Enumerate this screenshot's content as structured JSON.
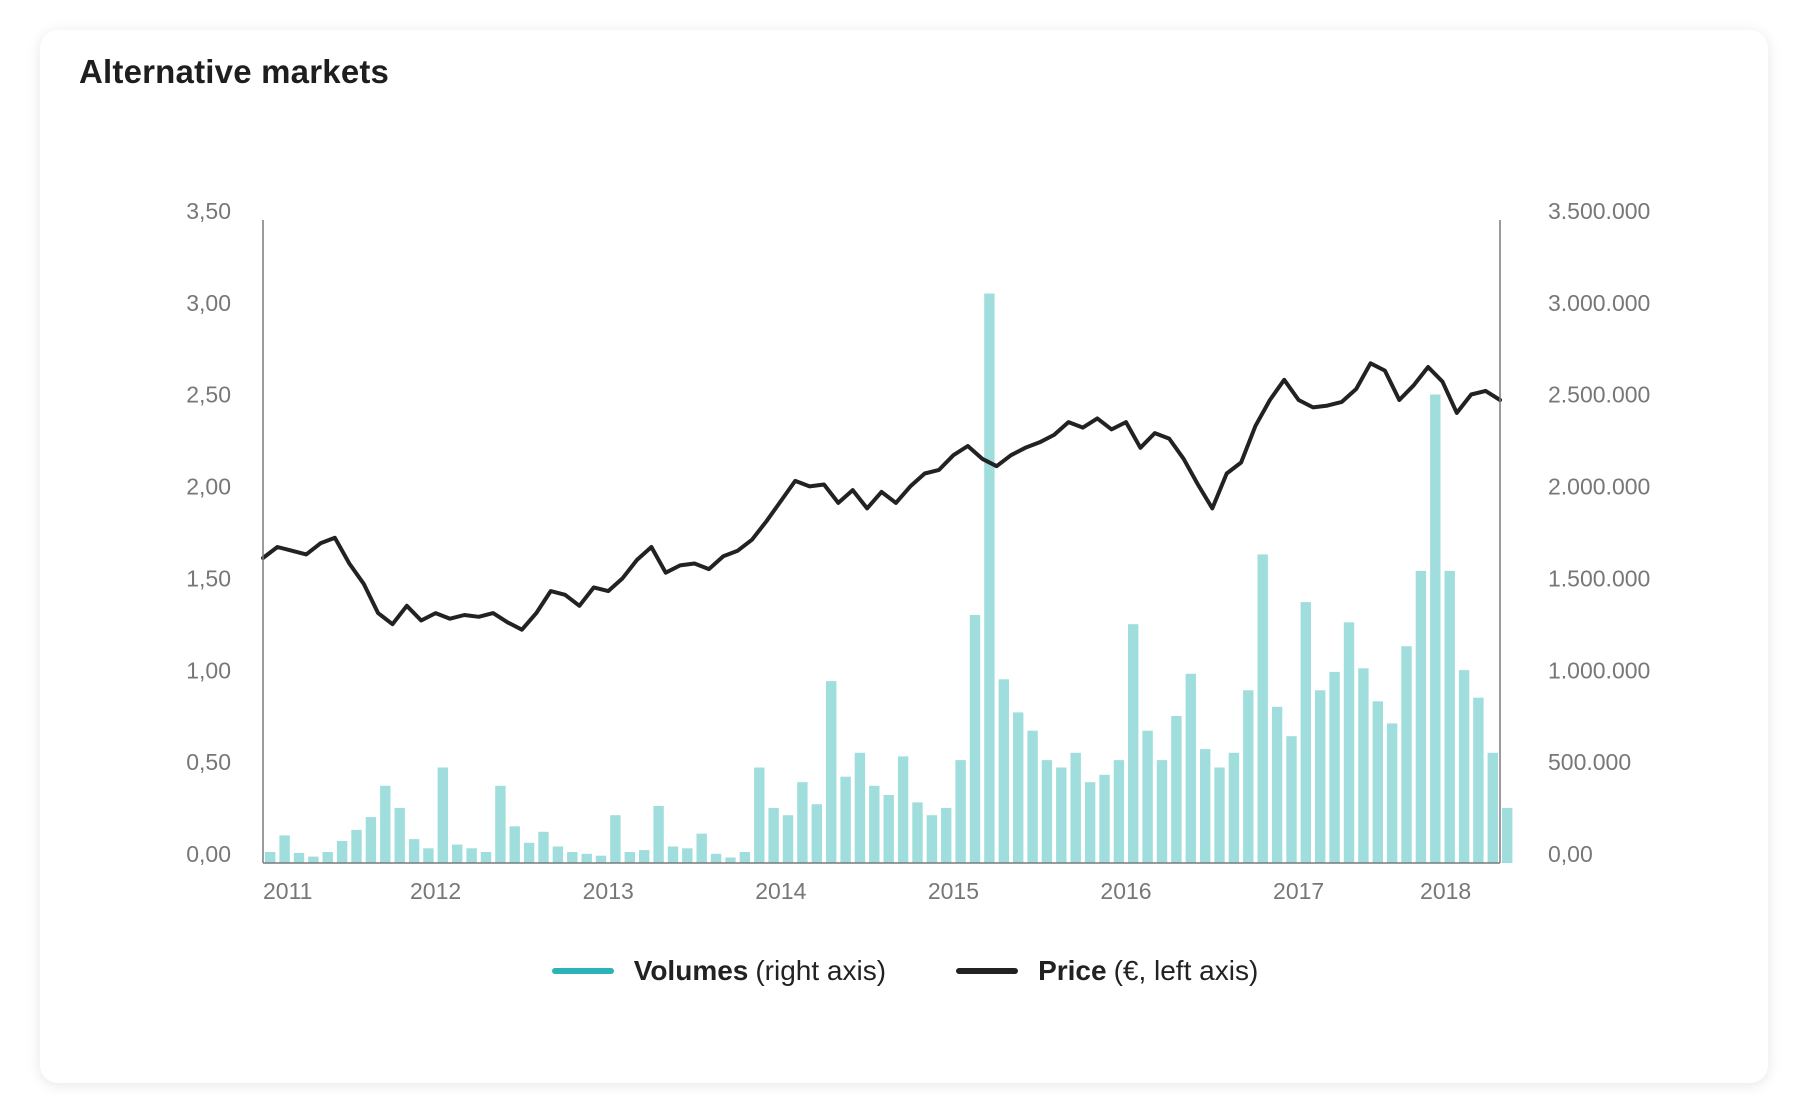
{
  "title": "Alternative markets",
  "colors": {
    "volume": "#9fdedc",
    "volume_legend": "#2bb3b5",
    "price": "#222222",
    "axis": "#7a7a7a"
  },
  "legend": {
    "volume": {
      "name": "Volumes",
      "note": "(right axis)"
    },
    "price": {
      "name": "Price",
      "note": "(€, left axis)"
    }
  },
  "chart_data": {
    "type": "bar+line",
    "title": "Alternative markets",
    "x_range": [
      "2011-01",
      "2018-03"
    ],
    "x_ticks": [
      "2011",
      "2012",
      "2013",
      "2014",
      "2015",
      "2016",
      "2017",
      "2018"
    ],
    "y_left": {
      "label": "Price (€)",
      "range": [
        0,
        3.5
      ],
      "ticks": [
        "0,00",
        "0,50",
        "1,00",
        "1,50",
        "2,00",
        "2,50",
        "3,00",
        "3,50"
      ]
    },
    "y_right": {
      "label": "Volumes",
      "range": [
        0,
        3500000
      ],
      "ticks": [
        "0,00",
        "500.000",
        "1.000.000",
        "1.500.000",
        "2.000.000",
        "2.500.000",
        "3.000.000",
        "3.500.000"
      ]
    },
    "grid": false,
    "legend_position": "bottom-center",
    "series": [
      {
        "name": "Price",
        "type": "line",
        "axis": "left",
        "points": [
          [
            "2011-01",
            1.66
          ],
          [
            "2011-02",
            1.72
          ],
          [
            "2011-03",
            1.7
          ],
          [
            "2011-04",
            1.68
          ],
          [
            "2011-05",
            1.74
          ],
          [
            "2011-06",
            1.77
          ],
          [
            "2011-07",
            1.63
          ],
          [
            "2011-08",
            1.52
          ],
          [
            "2011-09",
            1.36
          ],
          [
            "2011-10",
            1.3
          ],
          [
            "2011-11",
            1.4
          ],
          [
            "2011-12",
            1.32
          ],
          [
            "2012-01",
            1.36
          ],
          [
            "2012-02",
            1.33
          ],
          [
            "2012-03",
            1.35
          ],
          [
            "2012-04",
            1.34
          ],
          [
            "2012-05",
            1.36
          ],
          [
            "2012-06",
            1.31
          ],
          [
            "2012-07",
            1.27
          ],
          [
            "2012-08",
            1.36
          ],
          [
            "2012-09",
            1.48
          ],
          [
            "2012-10",
            1.46
          ],
          [
            "2012-11",
            1.4
          ],
          [
            "2012-12",
            1.5
          ],
          [
            "2013-01",
            1.48
          ],
          [
            "2013-02",
            1.55
          ],
          [
            "2013-03",
            1.65
          ],
          [
            "2013-04",
            1.72
          ],
          [
            "2013-05",
            1.58
          ],
          [
            "2013-06",
            1.62
          ],
          [
            "2013-07",
            1.63
          ],
          [
            "2013-08",
            1.6
          ],
          [
            "2013-09",
            1.67
          ],
          [
            "2013-10",
            1.7
          ],
          [
            "2013-11",
            1.76
          ],
          [
            "2013-12",
            1.86
          ],
          [
            "2014-01",
            1.97
          ],
          [
            "2014-02",
            2.08
          ],
          [
            "2014-03",
            2.05
          ],
          [
            "2014-04",
            2.06
          ],
          [
            "2014-05",
            1.96
          ],
          [
            "2014-06",
            2.03
          ],
          [
            "2014-07",
            1.93
          ],
          [
            "2014-08",
            2.02
          ],
          [
            "2014-09",
            1.96
          ],
          [
            "2014-10",
            2.05
          ],
          [
            "2014-11",
            2.12
          ],
          [
            "2014-12",
            2.14
          ],
          [
            "2015-01",
            2.22
          ],
          [
            "2015-02",
            2.27
          ],
          [
            "2015-03",
            2.2
          ],
          [
            "2015-04",
            2.16
          ],
          [
            "2015-05",
            2.22
          ],
          [
            "2015-06",
            2.26
          ],
          [
            "2015-07",
            2.29
          ],
          [
            "2015-08",
            2.33
          ],
          [
            "2015-09",
            2.4
          ],
          [
            "2015-10",
            2.37
          ],
          [
            "2015-11",
            2.42
          ],
          [
            "2015-12",
            2.36
          ],
          [
            "2016-01",
            2.4
          ],
          [
            "2016-02",
            2.26
          ],
          [
            "2016-03",
            2.34
          ],
          [
            "2016-04",
            2.31
          ],
          [
            "2016-05",
            2.2
          ],
          [
            "2016-06",
            2.06
          ],
          [
            "2016-07",
            1.93
          ],
          [
            "2016-08",
            2.12
          ],
          [
            "2016-09",
            2.18
          ],
          [
            "2016-10",
            2.38
          ],
          [
            "2016-11",
            2.52
          ],
          [
            "2016-12",
            2.63
          ],
          [
            "2017-01",
            2.52
          ],
          [
            "2017-02",
            2.48
          ],
          [
            "2017-03",
            2.49
          ],
          [
            "2017-04",
            2.51
          ],
          [
            "2017-05",
            2.58
          ],
          [
            "2017-06",
            2.72
          ],
          [
            "2017-07",
            2.68
          ],
          [
            "2017-08",
            2.52
          ],
          [
            "2017-09",
            2.6
          ],
          [
            "2017-10",
            2.7
          ],
          [
            "2017-11",
            2.62
          ],
          [
            "2017-12",
            2.45
          ],
          [
            "2018-01",
            2.55
          ],
          [
            "2018-02",
            2.57
          ],
          [
            "2018-03",
            2.52
          ]
        ]
      },
      {
        "name": "Volumes",
        "type": "bar",
        "axis": "right",
        "monthly_values": [
          [
            2011,
            [
              60000,
              150000,
              55000,
              35000,
              60000,
              120000,
              180000,
              250000,
              420000,
              300000,
              130000,
              80000
            ]
          ],
          [
            2012,
            [
              520000,
              100000,
              80000,
              60000,
              420000,
              200000,
              110000,
              170000,
              90000,
              60000,
              50000,
              40000
            ]
          ],
          [
            2013,
            [
              260000,
              60000,
              70000,
              310000,
              90000,
              80000,
              160000,
              50000,
              30000,
              60000,
              520000,
              300000
            ]
          ],
          [
            2014,
            [
              260000,
              440000,
              320000,
              990000,
              470000,
              600000,
              420000,
              370000,
              580000,
              330000,
              260000,
              300000
            ]
          ],
          [
            2015,
            [
              560000,
              1350000,
              3100000,
              1000000,
              820000,
              720000,
              560000,
              520000,
              600000,
              440000,
              480000,
              560000
            ]
          ],
          [
            2016,
            [
              1300000,
              720000,
              560000,
              800000,
              1030000,
              620000,
              520000,
              600000,
              940000,
              1680000,
              850000,
              690000
            ]
          ],
          [
            2017,
            [
              1420000,
              940000,
              1040000,
              1310000,
              1060000,
              880000,
              760000,
              1180000,
              1590000,
              2550000,
              1590000,
              1050000
            ]
          ],
          [
            2018,
            [
              900000,
              600000,
              300000
            ]
          ]
        ]
      }
    ]
  }
}
